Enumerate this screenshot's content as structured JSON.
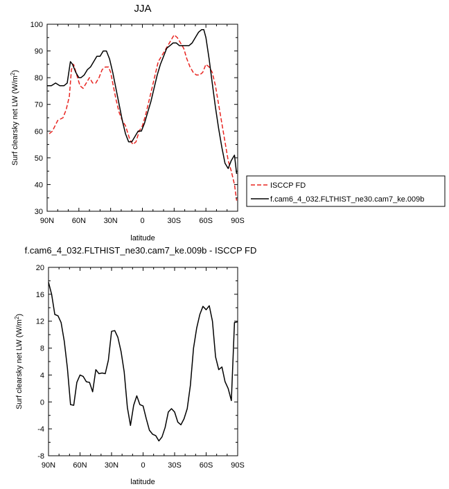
{
  "chart_data": [
    {
      "type": "line",
      "title": "JJA",
      "xlabel": "latitude",
      "ylabel": "Surf clearsky net LW (W/m",
      "ylabel_sup": "2",
      "ylabel_close": ")",
      "x_ticks": [
        -90,
        -60,
        -30,
        0,
        30,
        60,
        90
      ],
      "x_tick_labels": [
        "90N",
        "60N",
        "30N",
        "0",
        "30S",
        "60S",
        "90S"
      ],
      "xlim": [
        -90,
        90
      ],
      "ylim": [
        30,
        100
      ],
      "y_ticks": [
        30,
        40,
        50,
        60,
        70,
        80,
        90,
        100
      ],
      "y_tick_labels": [
        "30",
        "40",
        "50",
        "60",
        "70",
        "80",
        "90",
        "100"
      ],
      "legend_position": "outside-right",
      "series": [
        {
          "name": "ISCCP FD",
          "color": "#e8231f",
          "dash": "dashed",
          "x": [
            -88,
            -85,
            -80,
            -75,
            -72,
            -69,
            -67,
            -65,
            -62,
            -59,
            -56,
            -53,
            -50,
            -47,
            -44,
            -41,
            -38,
            -35,
            -32,
            -30,
            -28,
            -25,
            -22,
            -19,
            -16,
            -12,
            -9,
            -6,
            -3,
            0,
            3,
            6,
            9,
            12,
            15,
            18,
            21,
            24,
            27,
            30,
            33,
            36,
            39,
            42,
            45,
            48,
            51,
            54,
            57,
            60,
            63,
            66,
            69,
            72,
            75,
            78,
            81,
            84,
            87,
            89
          ],
          "values": [
            59,
            60,
            64,
            65,
            68,
            73,
            83,
            85,
            81,
            77,
            76,
            78,
            80,
            78,
            78,
            80,
            83,
            84,
            84,
            82,
            78,
            72,
            67,
            64,
            62,
            57,
            55,
            56,
            60,
            62,
            66,
            71,
            76,
            81,
            86,
            88,
            90,
            92,
            94,
            96,
            95,
            93,
            91,
            87,
            84,
            82,
            81,
            81,
            82,
            85,
            84,
            82,
            77,
            70,
            63,
            56,
            49,
            45,
            40,
            34
          ]
        },
        {
          "name": "f.cam6_4_032.FLTHIST_ne30.cam7_ke.009b",
          "color": "#000000",
          "dash": "solid",
          "x": [
            -90,
            -86,
            -82,
            -78,
            -74,
            -71,
            -68,
            -66,
            -63,
            -60,
            -58,
            -55,
            -52,
            -49,
            -46,
            -43,
            -40,
            -37,
            -34,
            -31,
            -28,
            -25,
            -22,
            -19,
            -16,
            -13,
            -10,
            -7,
            -4,
            -1,
            2,
            5,
            8,
            11,
            14,
            17,
            20,
            23,
            26,
            29,
            32,
            35,
            38,
            41,
            44,
            47,
            50,
            53,
            56,
            58,
            60,
            63,
            66,
            69,
            72,
            75,
            78,
            81,
            84,
            87,
            89
          ],
          "values": [
            77,
            77,
            78,
            77,
            77,
            78,
            86,
            85,
            82,
            80,
            80,
            81,
            83,
            84,
            86,
            88,
            88,
            90,
            90,
            87,
            82,
            76,
            70,
            64,
            59,
            56,
            56,
            58,
            60,
            60,
            63,
            67,
            71,
            76,
            81,
            85,
            88,
            91,
            92,
            93,
            93,
            92,
            92,
            92,
            92,
            93,
            95,
            97,
            98,
            98,
            95,
            87,
            78,
            69,
            61,
            54,
            48,
            46,
            49,
            51,
            44
          ]
        }
      ]
    },
    {
      "type": "line",
      "title": "f.cam6_4_032.FLTHIST_ne30.cam7_ke.009b - ISCCP FD",
      "xlabel": "latitude",
      "ylabel": "Surf clearsky net LW (W/m",
      "ylabel_sup": "2",
      "ylabel_close": ")",
      "x_ticks": [
        -90,
        -60,
        -30,
        0,
        30,
        60,
        90
      ],
      "x_tick_labels": [
        "90N",
        "60N",
        "30N",
        "0",
        "30S",
        "60S",
        "90S"
      ],
      "xlim": [
        -90,
        90
      ],
      "ylim": [
        -8,
        20
      ],
      "y_ticks": [
        -8,
        -4,
        0,
        4,
        8,
        12,
        16,
        20
      ],
      "y_tick_labels": [
        "-8",
        "-4",
        "0",
        "4",
        "8",
        "12",
        "16",
        "20"
      ],
      "series": [
        {
          "color": "#000000",
          "dash": "solid",
          "x": [
            -90,
            -87,
            -84,
            -81,
            -78,
            -75,
            -72,
            -69,
            -66,
            -63,
            -60,
            -57,
            -54,
            -51,
            -48,
            -45,
            -42,
            -39,
            -36,
            -33,
            -30,
            -27,
            -24,
            -21,
            -18,
            -15,
            -12,
            -9,
            -6,
            -3,
            0,
            3,
            6,
            9,
            12,
            15,
            18,
            21,
            24,
            27,
            30,
            33,
            36,
            39,
            42,
            45,
            48,
            51,
            54,
            57,
            60,
            63,
            66,
            69,
            72,
            75,
            78,
            81,
            84,
            87,
            90
          ],
          "values": [
            17.8,
            16,
            13,
            12.8,
            11.8,
            9,
            5,
            -0.4,
            -0.5,
            2.9,
            4,
            3.8,
            3,
            2.9,
            1.5,
            4.8,
            4.2,
            4.3,
            4.2,
            6.2,
            10.5,
            10.6,
            9.6,
            7.5,
            4.5,
            -0.8,
            -3.5,
            -0.5,
            0.9,
            -0.4,
            -0.6,
            -2.5,
            -4.2,
            -4.8,
            -5,
            -5.8,
            -5.2,
            -3.8,
            -1.5,
            -1,
            -1.5,
            -3,
            -3.4,
            -2.5,
            -1,
            2.5,
            8,
            11,
            13,
            14.2,
            13.7,
            14.3,
            12,
            6.7,
            4.8,
            5.2,
            3,
            2,
            0.2,
            11.8,
            11.9
          ]
        }
      ]
    }
  ]
}
